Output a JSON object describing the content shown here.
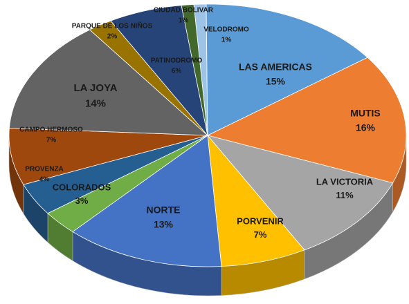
{
  "chart_data": {
    "type": "pie",
    "categories": [
      "VELODROMO",
      "LAS AMERICAS",
      "MUTIS",
      "LA VICTORIA",
      "PORVENIR",
      "NORTE",
      "COLORADOS",
      "PROVENZA",
      "CAMPO HERMOSO",
      "LA JOYA",
      "PARQUE  DE LOS NIÑOS",
      "PATINODROMO",
      "CIUDAD BOLIVAR"
    ],
    "values": [
      1,
      15,
      16,
      11,
      7,
      13,
      3,
      4,
      7,
      14,
      2,
      6,
      1
    ],
    "value_labels": [
      "1%",
      "15%",
      "16%",
      "11%",
      "7%",
      "13%",
      "3%",
      "4%",
      "7%",
      "14%",
      "2%",
      "6%",
      "1%"
    ],
    "colors": [
      "#9dc3e6",
      "#5b9bd5",
      "#ed7d31",
      "#a5a5a5",
      "#ffc000",
      "#4472c4",
      "#70ad47",
      "#255e91",
      "#9e480e",
      "#636363",
      "#997300",
      "#264478",
      "#43682b"
    ]
  }
}
